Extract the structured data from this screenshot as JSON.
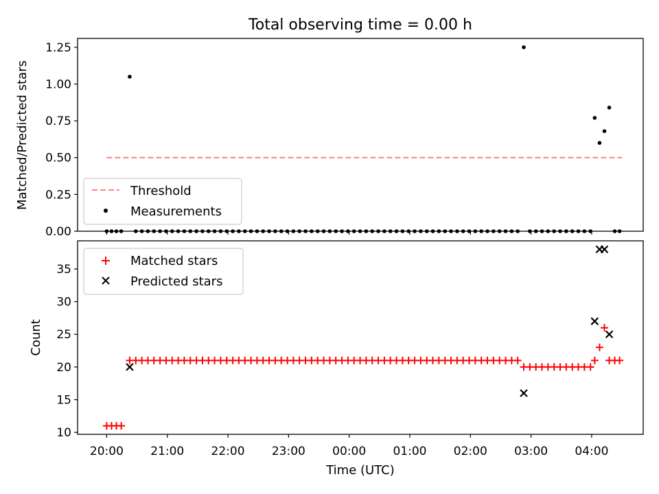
{
  "figure": {
    "title": "Total observing time = 0.00 h"
  },
  "chart_data": [
    {
      "type": "scatter",
      "ylabel": "Matched/Predicted stars",
      "ylim": [
        0,
        1.31
      ],
      "yticks": [
        "0.00",
        "0.25",
        "0.50",
        "0.75",
        "1.00",
        "1.25"
      ],
      "xlim": [
        -0.48,
        8.85
      ],
      "xtick_values": [
        0,
        1,
        2,
        3,
        4,
        5,
        6,
        7,
        8
      ],
      "legend_position": "lower-left",
      "threshold": {
        "name": "Threshold",
        "value": 0.5,
        "x": [
          0,
          8.5
        ],
        "color": "#ff7f7f"
      },
      "measurements": {
        "name": "Measurements",
        "color": "#000000",
        "points": [
          [
            0.0,
            0
          ],
          [
            0.08,
            0
          ],
          [
            0.16,
            0
          ],
          [
            0.24,
            0
          ],
          [
            0.38,
            1.05
          ],
          [
            0.48,
            0
          ],
          [
            0.58,
            0
          ],
          [
            0.68,
            0
          ],
          [
            0.78,
            0
          ],
          [
            0.88,
            0
          ],
          [
            0.98,
            0
          ],
          [
            1.08,
            0
          ],
          [
            1.18,
            0
          ],
          [
            1.28,
            0
          ],
          [
            1.38,
            0
          ],
          [
            1.48,
            0
          ],
          [
            1.58,
            0
          ],
          [
            1.68,
            0
          ],
          [
            1.78,
            0
          ],
          [
            1.88,
            0
          ],
          [
            1.98,
            0
          ],
          [
            2.08,
            0
          ],
          [
            2.18,
            0
          ],
          [
            2.28,
            0
          ],
          [
            2.38,
            0
          ],
          [
            2.48,
            0
          ],
          [
            2.58,
            0
          ],
          [
            2.68,
            0
          ],
          [
            2.78,
            0
          ],
          [
            2.88,
            0
          ],
          [
            2.98,
            0
          ],
          [
            3.08,
            0
          ],
          [
            3.18,
            0
          ],
          [
            3.28,
            0
          ],
          [
            3.38,
            0
          ],
          [
            3.48,
            0
          ],
          [
            3.58,
            0
          ],
          [
            3.68,
            0
          ],
          [
            3.78,
            0
          ],
          [
            3.88,
            0
          ],
          [
            3.98,
            0
          ],
          [
            4.08,
            0
          ],
          [
            4.18,
            0
          ],
          [
            4.28,
            0
          ],
          [
            4.38,
            0
          ],
          [
            4.48,
            0
          ],
          [
            4.58,
            0
          ],
          [
            4.68,
            0
          ],
          [
            4.78,
            0
          ],
          [
            4.88,
            0
          ],
          [
            4.98,
            0
          ],
          [
            5.08,
            0
          ],
          [
            5.18,
            0
          ],
          [
            5.28,
            0
          ],
          [
            5.38,
            0
          ],
          [
            5.48,
            0
          ],
          [
            5.58,
            0
          ],
          [
            5.68,
            0
          ],
          [
            5.78,
            0
          ],
          [
            5.88,
            0
          ],
          [
            5.98,
            0
          ],
          [
            6.08,
            0
          ],
          [
            6.18,
            0
          ],
          [
            6.28,
            0
          ],
          [
            6.38,
            0
          ],
          [
            6.48,
            0
          ],
          [
            6.58,
            0
          ],
          [
            6.68,
            0
          ],
          [
            6.78,
            0
          ],
          [
            6.88,
            1.25
          ],
          [
            6.98,
            0
          ],
          [
            7.08,
            0
          ],
          [
            7.18,
            0
          ],
          [
            7.28,
            0
          ],
          [
            7.38,
            0
          ],
          [
            7.48,
            0
          ],
          [
            7.58,
            0
          ],
          [
            7.68,
            0
          ],
          [
            7.78,
            0
          ],
          [
            7.88,
            0
          ],
          [
            7.98,
            0
          ],
          [
            8.05,
            0.77
          ],
          [
            8.13,
            0.6
          ],
          [
            8.21,
            0.68
          ],
          [
            8.29,
            0.84
          ],
          [
            8.38,
            0
          ],
          [
            8.46,
            0
          ]
        ]
      }
    },
    {
      "type": "scatter",
      "xlabel": "Time (UTC)",
      "ylabel": "Count",
      "ylim": [
        9.7,
        39.3
      ],
      "yticks": [
        "10",
        "15",
        "20",
        "25",
        "30",
        "35"
      ],
      "xlim": [
        -0.48,
        8.85
      ],
      "xticks": [
        "20:00",
        "21:00",
        "22:00",
        "23:00",
        "00:00",
        "01:00",
        "02:00",
        "03:00",
        "04:00"
      ],
      "xtick_values": [
        0,
        1,
        2,
        3,
        4,
        5,
        6,
        7,
        8
      ],
      "legend_position": "top-left",
      "matched": {
        "name": "Matched stars",
        "color": "#ff0000",
        "points": [
          [
            0.0,
            11
          ],
          [
            0.08,
            11
          ],
          [
            0.16,
            11
          ],
          [
            0.24,
            11
          ],
          [
            0.38,
            21
          ],
          [
            0.48,
            21
          ],
          [
            0.58,
            21
          ],
          [
            0.68,
            21
          ],
          [
            0.78,
            21
          ],
          [
            0.88,
            21
          ],
          [
            0.98,
            21
          ],
          [
            1.08,
            21
          ],
          [
            1.18,
            21
          ],
          [
            1.28,
            21
          ],
          [
            1.38,
            21
          ],
          [
            1.48,
            21
          ],
          [
            1.58,
            21
          ],
          [
            1.68,
            21
          ],
          [
            1.78,
            21
          ],
          [
            1.88,
            21
          ],
          [
            1.98,
            21
          ],
          [
            2.08,
            21
          ],
          [
            2.18,
            21
          ],
          [
            2.28,
            21
          ],
          [
            2.38,
            21
          ],
          [
            2.48,
            21
          ],
          [
            2.58,
            21
          ],
          [
            2.68,
            21
          ],
          [
            2.78,
            21
          ],
          [
            2.88,
            21
          ],
          [
            2.98,
            21
          ],
          [
            3.08,
            21
          ],
          [
            3.18,
            21
          ],
          [
            3.28,
            21
          ],
          [
            3.38,
            21
          ],
          [
            3.48,
            21
          ],
          [
            3.58,
            21
          ],
          [
            3.68,
            21
          ],
          [
            3.78,
            21
          ],
          [
            3.88,
            21
          ],
          [
            3.98,
            21
          ],
          [
            4.08,
            21
          ],
          [
            4.18,
            21
          ],
          [
            4.28,
            21
          ],
          [
            4.38,
            21
          ],
          [
            4.48,
            21
          ],
          [
            4.58,
            21
          ],
          [
            4.68,
            21
          ],
          [
            4.78,
            21
          ],
          [
            4.88,
            21
          ],
          [
            4.98,
            21
          ],
          [
            5.08,
            21
          ],
          [
            5.18,
            21
          ],
          [
            5.28,
            21
          ],
          [
            5.38,
            21
          ],
          [
            5.48,
            21
          ],
          [
            5.58,
            21
          ],
          [
            5.68,
            21
          ],
          [
            5.78,
            21
          ],
          [
            5.88,
            21
          ],
          [
            5.98,
            21
          ],
          [
            6.08,
            21
          ],
          [
            6.18,
            21
          ],
          [
            6.28,
            21
          ],
          [
            6.38,
            21
          ],
          [
            6.48,
            21
          ],
          [
            6.58,
            21
          ],
          [
            6.68,
            21
          ],
          [
            6.78,
            21
          ],
          [
            6.88,
            20
          ],
          [
            6.98,
            20
          ],
          [
            7.08,
            20
          ],
          [
            7.18,
            20
          ],
          [
            7.28,
            20
          ],
          [
            7.38,
            20
          ],
          [
            7.48,
            20
          ],
          [
            7.58,
            20
          ],
          [
            7.68,
            20
          ],
          [
            7.78,
            20
          ],
          [
            7.88,
            20
          ],
          [
            7.98,
            20
          ],
          [
            8.05,
            21
          ],
          [
            8.13,
            23
          ],
          [
            8.21,
            26
          ],
          [
            8.29,
            21
          ],
          [
            8.38,
            21
          ],
          [
            8.46,
            21
          ]
        ]
      },
      "predicted": {
        "name": "Predicted stars",
        "color": "#000000",
        "points": [
          [
            0.38,
            20
          ],
          [
            6.88,
            16
          ],
          [
            8.05,
            27
          ],
          [
            8.13,
            38
          ],
          [
            8.21,
            38
          ],
          [
            8.29,
            25
          ]
        ]
      }
    }
  ]
}
